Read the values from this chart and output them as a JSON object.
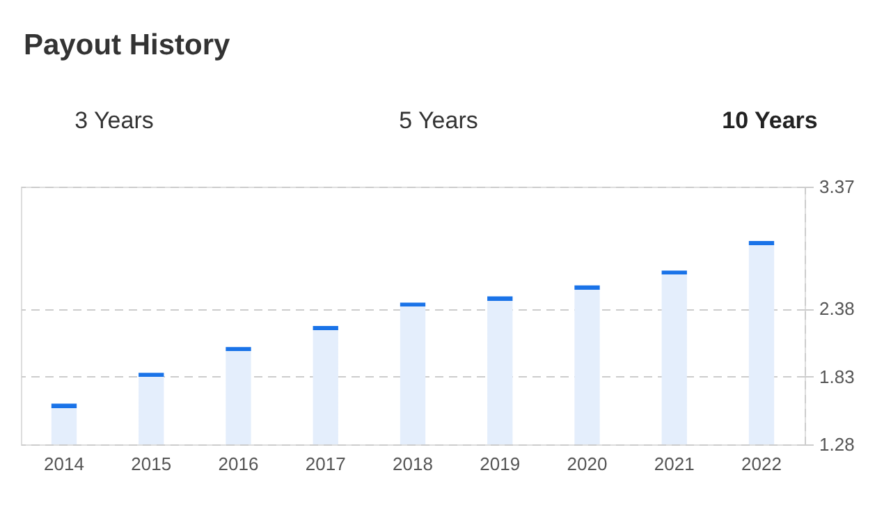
{
  "chart_data": {
    "type": "bar",
    "title": "Payout History",
    "annotations": [
      "3 Years",
      "5 Years",
      "10 Years"
    ],
    "categories": [
      "2014",
      "2015",
      "2016",
      "2017",
      "2018",
      "2019",
      "2020",
      "2021",
      "2022"
    ],
    "series": [
      {
        "color": "#1a73e8",
        "values": [
          1.61,
          1.86,
          2.07,
          2.24,
          2.43,
          2.48,
          2.57,
          2.69,
          2.93
        ]
      }
    ],
    "ylim": [
      1.28,
      3.37
    ],
    "yticks": [
      1.28,
      1.83,
      2.38,
      3.37
    ],
    "grid": "y"
  }
}
